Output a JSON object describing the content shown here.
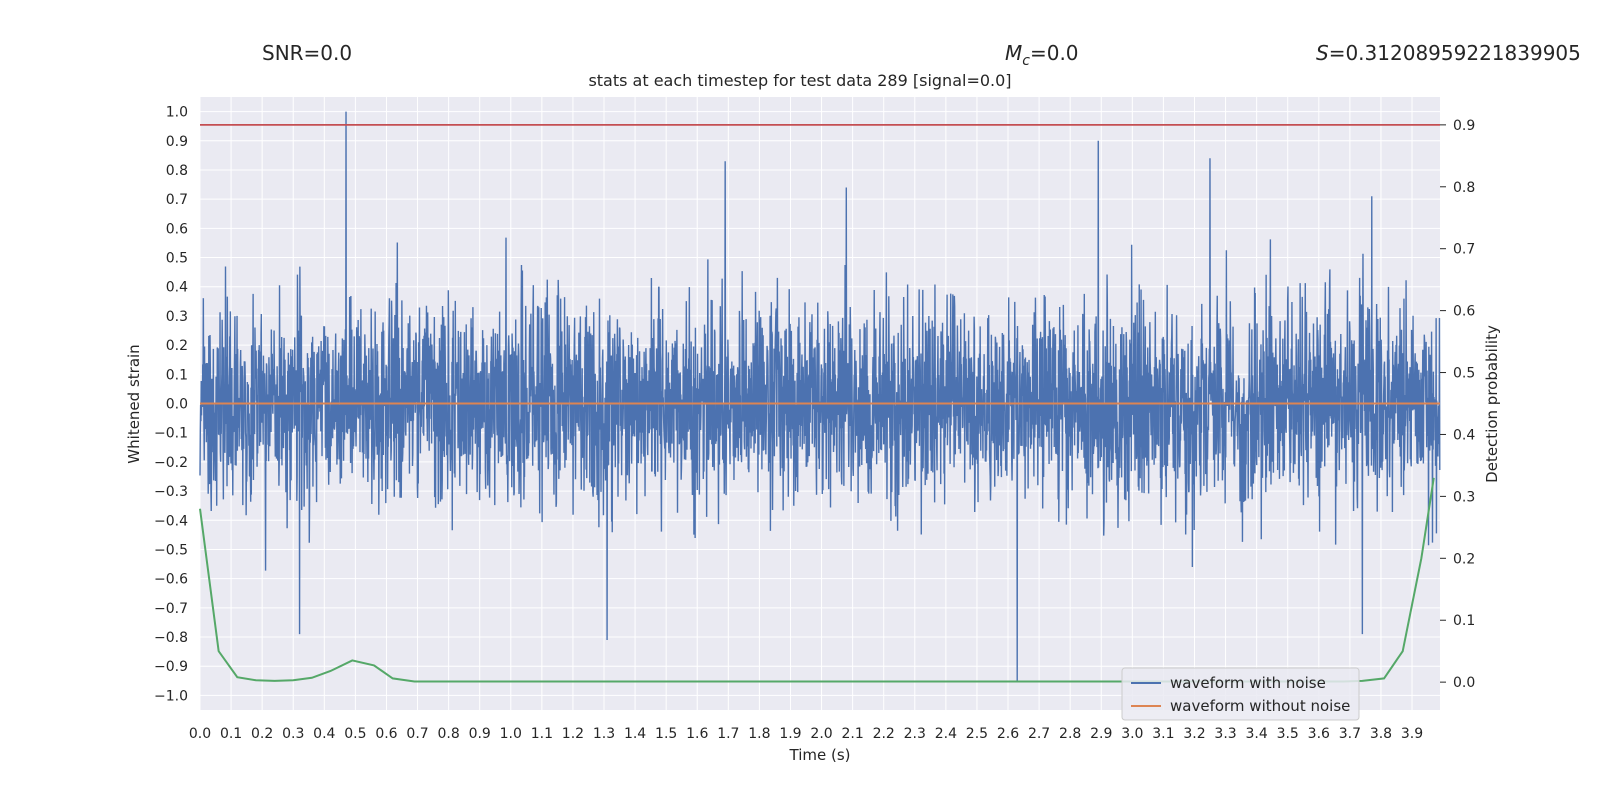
{
  "header": {
    "snr_label": "SNR=0.0",
    "mc_label": "M_c=0.0",
    "s_label": "S=0.31208959221839905"
  },
  "chart_data": {
    "type": "line",
    "title": "stats at each timestep for test data 289 [signal=0.0]",
    "xlabel": "Time (s)",
    "ylabel": "Whitened strain",
    "y2label": "Detection probability",
    "xlim": [
      0.0,
      3.99
    ],
    "ylim": [
      -1.05,
      1.05
    ],
    "y2lim": [
      -0.045,
      0.945
    ],
    "x_ticks": [
      0.0,
      0.1,
      0.2,
      0.3,
      0.4,
      0.5,
      0.6,
      0.7,
      0.8,
      0.9,
      1.0,
      1.1,
      1.2,
      1.3,
      1.4,
      1.5,
      1.6,
      1.7,
      1.8,
      1.9,
      2.0,
      2.1,
      2.2,
      2.3,
      2.4,
      2.5,
      2.6,
      2.7,
      2.8,
      2.9,
      3.0,
      3.1,
      3.2,
      3.3,
      3.4,
      3.5,
      3.6,
      3.7,
      3.8,
      3.9
    ],
    "x_tick_labels": [
      "0.0",
      "0.1",
      "0.2",
      "0.3",
      "0.4",
      "0.5",
      "0.6",
      "0.7",
      "0.8",
      "0.9",
      "1.0",
      "1.1",
      "1.2",
      "1.3",
      "1.4",
      "1.5",
      "1.6",
      "1.7",
      "1.8",
      "1.9",
      "2.0",
      "2.1",
      "2.2",
      "2.3",
      "2.4",
      "2.5",
      "2.6",
      "2.7",
      "2.8",
      "2.9",
      "3.0",
      "3.1",
      "3.2",
      "3.3",
      "3.4",
      "3.5",
      "3.6",
      "3.7",
      "3.8",
      "3.9"
    ],
    "y_ticks": [
      1.0,
      0.9,
      0.8,
      0.7,
      0.6,
      0.5,
      0.4,
      0.3,
      0.2,
      0.1,
      0.0,
      -0.1,
      -0.2,
      -0.3,
      -0.4,
      -0.5,
      -0.6,
      -0.7,
      -0.8,
      -0.9,
      -1.0
    ],
    "y_tick_labels": [
      "1.0",
      "0.9",
      "0.8",
      "0.7",
      "0.6",
      "0.5",
      "0.4",
      "0.3",
      "0.2",
      "0.1",
      "0.0",
      "−0.1",
      "−0.2",
      "−0.3",
      "−0.4",
      "−0.5",
      "−0.6",
      "−0.7",
      "−0.8",
      "−0.9",
      "−1.0"
    ],
    "y2_ticks": [
      0.9,
      0.8,
      0.7,
      0.6,
      0.5,
      0.4,
      0.3,
      0.2,
      0.1,
      0.0
    ],
    "y2_tick_labels": [
      "0.9",
      "0.8",
      "0.7",
      "0.6",
      "0.5",
      "0.4",
      "0.3",
      "0.2",
      "0.1",
      "0.0"
    ],
    "threshold": {
      "axis": "y2",
      "value": 0.9,
      "color": "#c44e52"
    },
    "series": [
      {
        "name": "waveform with noise",
        "axis": "y",
        "color": "#4c72b0",
        "generated": "dense whitened noise, approx. 4096 samples over 0–4 s",
        "sample_count": 4096,
        "noise_sigma": 0.17,
        "extremes": [
          [
            0.47,
            1.0
          ],
          [
            2.89,
            0.9
          ],
          [
            3.25,
            0.84
          ],
          [
            1.69,
            0.83
          ],
          [
            2.63,
            -0.95
          ],
          [
            1.31,
            -0.81
          ],
          [
            0.32,
            -0.79
          ],
          [
            3.74,
            -0.79
          ],
          [
            2.08,
            0.74
          ],
          [
            3.77,
            0.71
          ]
        ]
      },
      {
        "name": "waveform without noise",
        "axis": "y",
        "color": "#dd8452",
        "x": [
          0.0,
          3.99
        ],
        "y": [
          0.0,
          0.0
        ]
      },
      {
        "name": "detection probability",
        "axis": "y2",
        "color": "#55a868",
        "x": [
          0.0,
          0.06,
          0.12,
          0.18,
          0.24,
          0.3,
          0.36,
          0.42,
          0.49,
          0.56,
          0.62,
          0.69,
          0.8,
          1.0,
          2.0,
          3.0,
          3.5,
          3.68,
          3.74,
          3.81,
          3.87,
          3.93,
          3.97
        ],
        "y": [
          0.28,
          0.05,
          0.008,
          0.003,
          0.002,
          0.003,
          0.007,
          0.018,
          0.035,
          0.027,
          0.006,
          0.001,
          0.001,
          0.001,
          0.001,
          0.001,
          0.001,
          0.001,
          0.002,
          0.006,
          0.05,
          0.2,
          0.33
        ]
      }
    ],
    "legend": {
      "position": "lower-right",
      "entries": [
        "waveform with noise",
        "waveform without noise"
      ]
    }
  }
}
